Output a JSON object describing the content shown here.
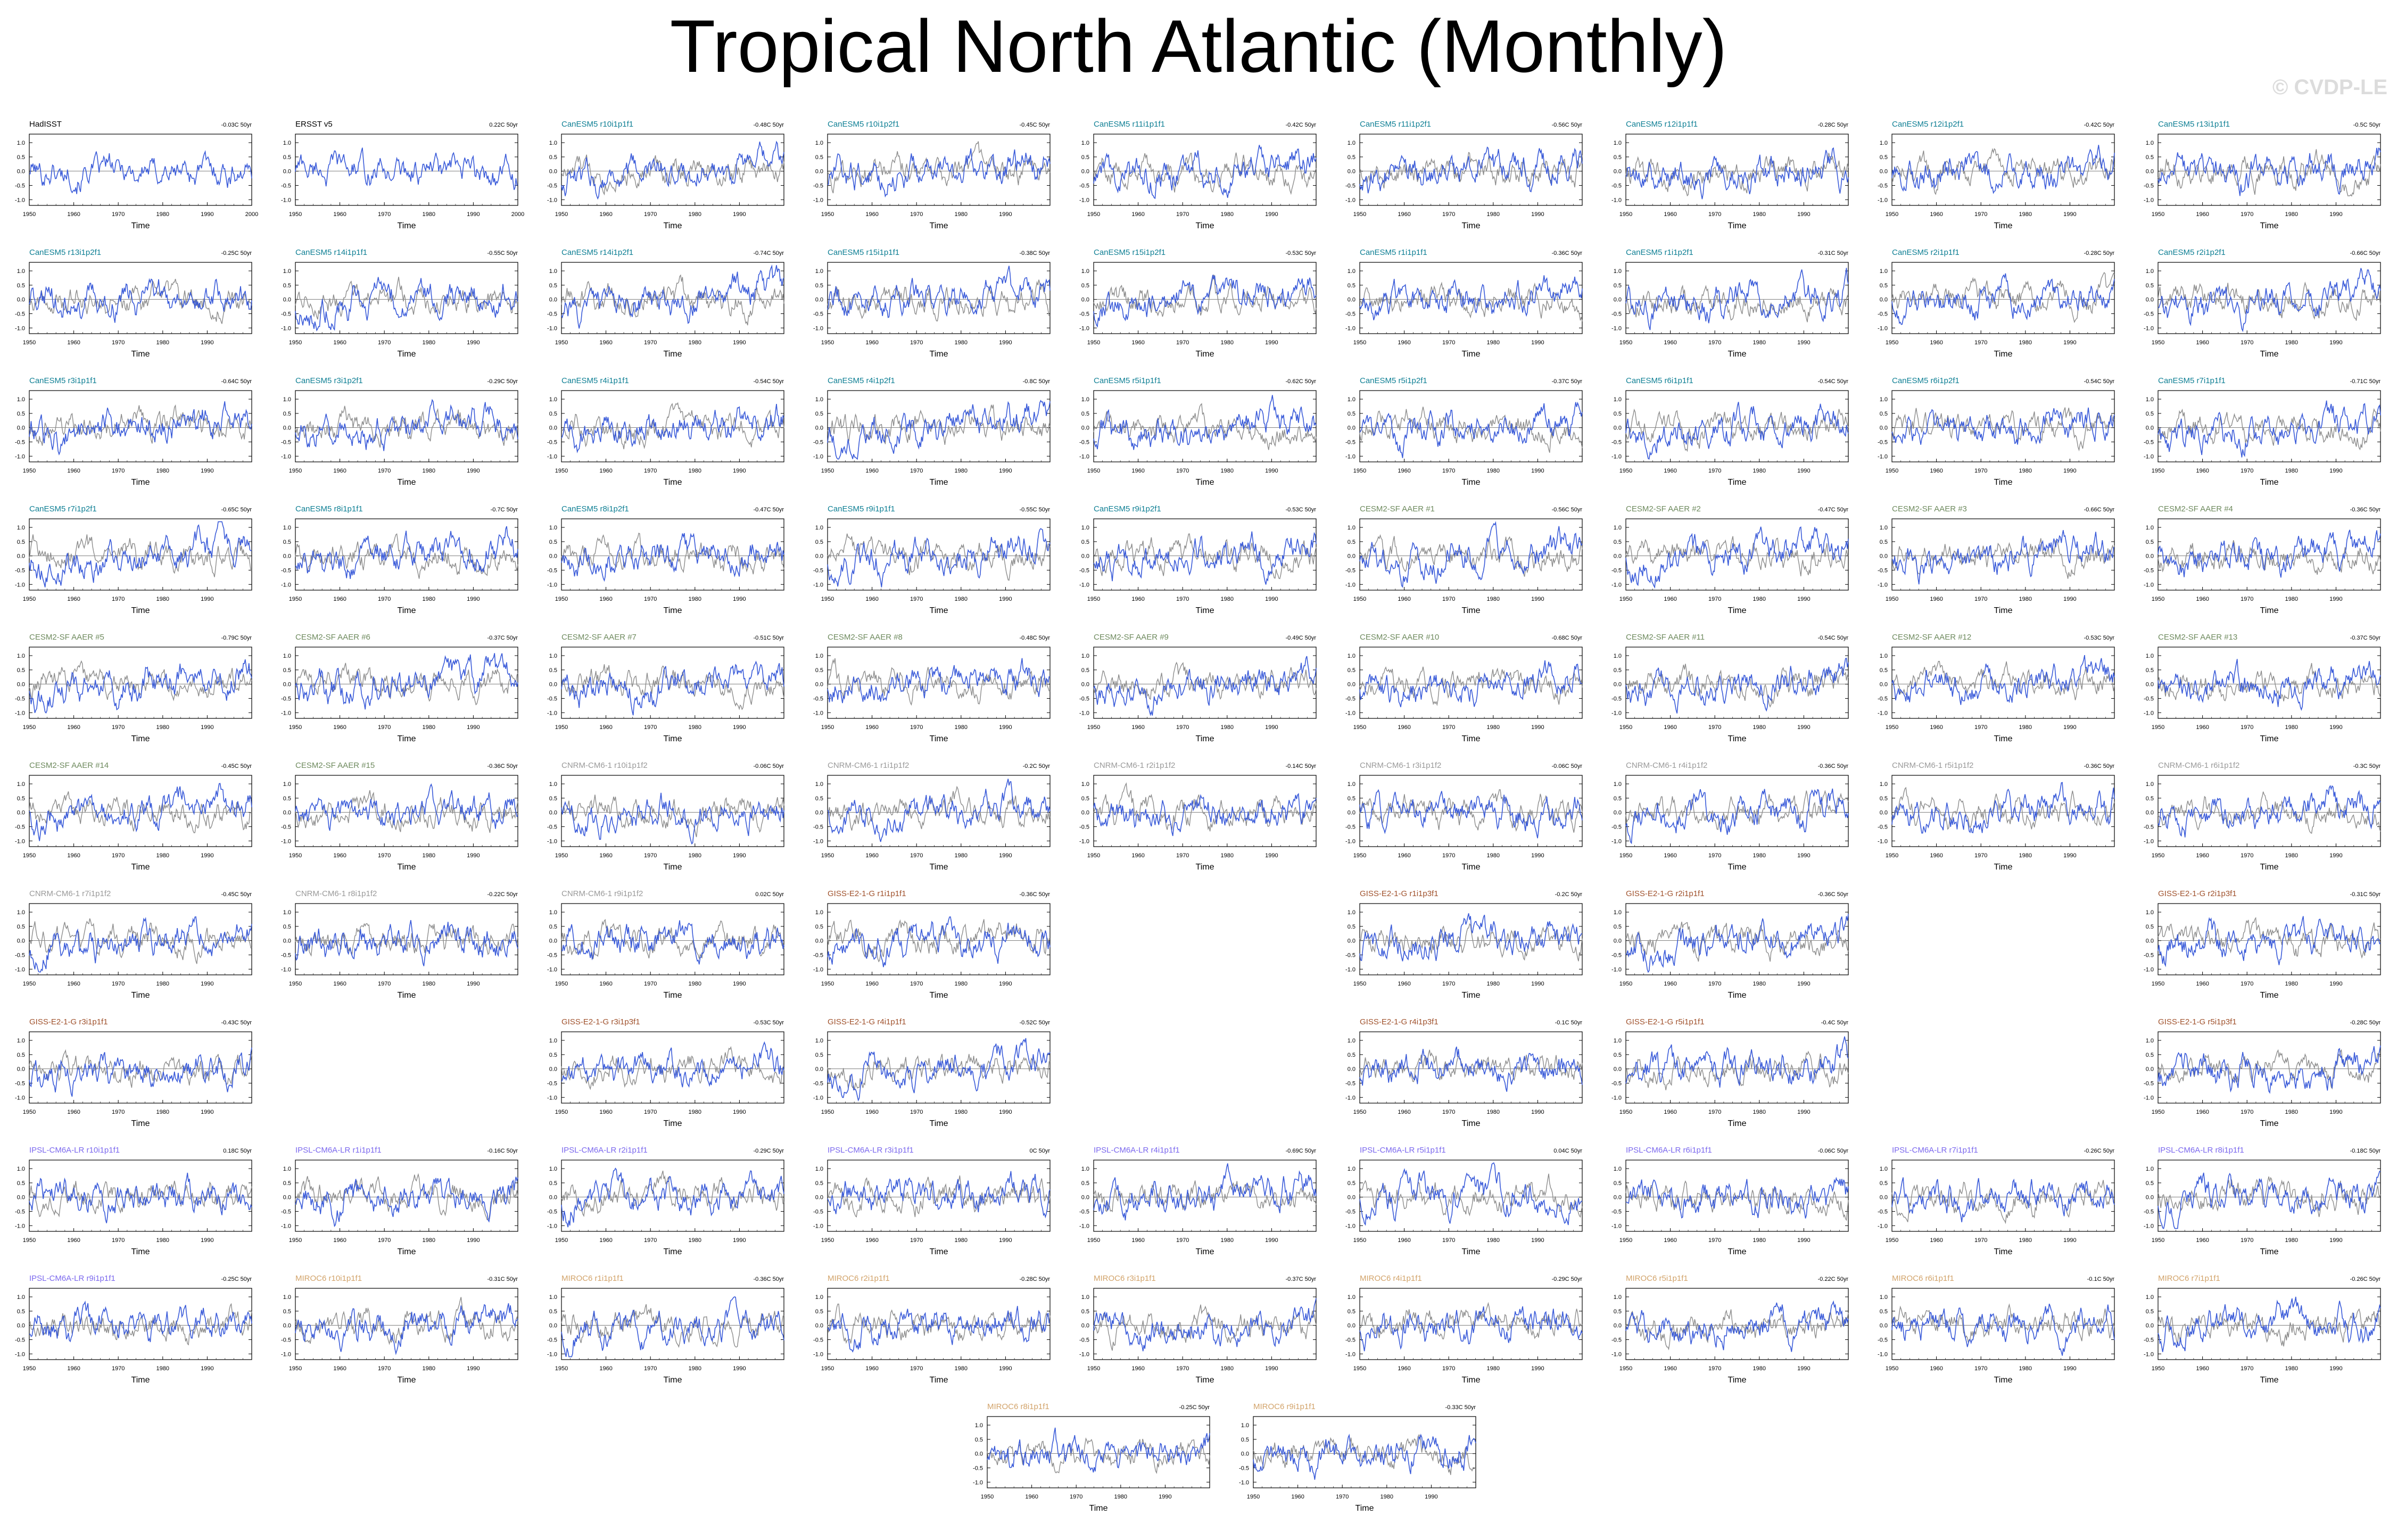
{
  "page": {
    "title": "Tropical North Atlantic (Monthly)",
    "watermark": "© CVDP-LE"
  },
  "colors": {
    "model_line": "#3A5BD9",
    "observation_line": "#8C8C8C",
    "observation_title": "#000000",
    "CanESM5": "#0E7F94",
    "CESM2-SF AAER": "#6E8A5E",
    "CNRM-CM6-1": "#9A9A9A",
    "GISS-E2-1-G": "#A0522D",
    "IPSL-CM6A-LR": "#7B68EE",
    "MIROC6": "#D2A36A"
  },
  "chart_data": {
    "type": "line",
    "description_units": "x: year, y: SST anomaly (C)",
    "axes": {
      "xlabel": "Time",
      "xticks_obs": [
        1950,
        1960,
        1970,
        1980,
        1990,
        2000
      ],
      "xticks_model": [
        1950,
        1960,
        1970,
        1980,
        1990
      ],
      "xlim": [
        1950,
        2000
      ],
      "ylim": [
        -1.2,
        1.3
      ],
      "yticks_standard": [
        "1.0",
        "0.5",
        "0.0",
        "-0.5",
        "-1.0"
      ],
      "yticks_extended": [
        "1.5",
        "1.0",
        "0.5",
        "0.0",
        "-0.5",
        "-1.0"
      ]
    },
    "panels": [
      {
        "name": "HadISST",
        "trend": "-0.03C 50yr",
        "group": "obs",
        "row": 0,
        "col": 0
      },
      {
        "name": "ERSST v5",
        "trend": "0.22C 50yr",
        "group": "obs",
        "row": 0,
        "col": 1
      },
      {
        "name": "CanESM5 r10i1p1f1",
        "trend": "-0.48C 50yr",
        "group": "CanESM5",
        "row": 0,
        "col": 2
      },
      {
        "name": "CanESM5 r10i1p2f1",
        "trend": "-0.45C 50yr",
        "group": "CanESM5",
        "row": 0,
        "col": 3
      },
      {
        "name": "CanESM5 r11i1p1f1",
        "trend": "-0.42C 50yr",
        "group": "CanESM5",
        "row": 0,
        "col": 4
      },
      {
        "name": "CanESM5 r11i1p2f1",
        "trend": "-0.56C 50yr",
        "group": "CanESM5",
        "row": 0,
        "col": 5
      },
      {
        "name": "CanESM5 r12i1p1f1",
        "trend": "-0.28C 50yr",
        "group": "CanESM5",
        "row": 0,
        "col": 6
      },
      {
        "name": "CanESM5 r12i1p2f1",
        "trend": "-0.42C 50yr",
        "group": "CanESM5",
        "row": 0,
        "col": 7
      },
      {
        "name": "CanESM5 r13i1p1f1",
        "trend": "-0.5C 50yr",
        "group": "CanESM5",
        "row": 0,
        "col": 8
      },
      {
        "name": "CanESM5 r13i1p2f1",
        "trend": "-0.25C 50yr",
        "group": "CanESM5",
        "row": 1,
        "col": 0
      },
      {
        "name": "CanESM5 r14i1p1f1",
        "trend": "-0.55C 50yr",
        "group": "CanESM5",
        "row": 1,
        "col": 1
      },
      {
        "name": "CanESM5 r14i1p2f1",
        "trend": "-0.74C 50yr",
        "group": "CanESM5",
        "row": 1,
        "col": 2
      },
      {
        "name": "CanESM5 r15i1p1f1",
        "trend": "-0.38C 50yr",
        "group": "CanESM5",
        "row": 1,
        "col": 3
      },
      {
        "name": "CanESM5 r15i1p2f1",
        "trend": "-0.53C 50yr",
        "group": "CanESM5",
        "row": 1,
        "col": 4
      },
      {
        "name": "CanESM5 r1i1p1f1",
        "trend": "-0.36C 50yr",
        "group": "CanESM5",
        "row": 1,
        "col": 5
      },
      {
        "name": "CanESM5 r1i1p2f1",
        "trend": "-0.31C 50yr",
        "group": "CanESM5",
        "row": 1,
        "col": 6
      },
      {
        "name": "CanESM5 r2i1p1f1",
        "trend": "-0.28C 50yr",
        "group": "CanESM5",
        "row": 1,
        "col": 7
      },
      {
        "name": "CanESM5 r2i1p2f1",
        "trend": "-0.66C 50yr",
        "group": "CanESM5",
        "row": 1,
        "col": 8
      },
      {
        "name": "CanESM5 r3i1p1f1",
        "trend": "-0.64C 50yr",
        "group": "CanESM5",
        "row": 2,
        "col": 0
      },
      {
        "name": "CanESM5 r3i1p2f1",
        "trend": "-0.29C 50yr",
        "group": "CanESM5",
        "row": 2,
        "col": 1
      },
      {
        "name": "CanESM5 r4i1p1f1",
        "trend": "-0.54C 50yr",
        "group": "CanESM5",
        "row": 2,
        "col": 2
      },
      {
        "name": "CanESM5 r4i1p2f1",
        "trend": "-0.8C 50yr",
        "group": "CanESM5",
        "row": 2,
        "col": 3
      },
      {
        "name": "CanESM5 r5i1p1f1",
        "trend": "-0.62C 50yr",
        "group": "CanESM5",
        "row": 2,
        "col": 4
      },
      {
        "name": "CanESM5 r5i1p2f1",
        "trend": "-0.37C 50yr",
        "group": "CanESM5",
        "row": 2,
        "col": 5
      },
      {
        "name": "CanESM5 r6i1p1f1",
        "trend": "-0.54C 50yr",
        "group": "CanESM5",
        "row": 2,
        "col": 6
      },
      {
        "name": "CanESM5 r6i1p2f1",
        "trend": "-0.54C 50yr",
        "group": "CanESM5",
        "row": 2,
        "col": 7
      },
      {
        "name": "CanESM5 r7i1p1f1",
        "trend": "-0.71C 50yr",
        "group": "CanESM5",
        "row": 2,
        "col": 8
      },
      {
        "name": "CanESM5 r7i1p2f1",
        "trend": "-0.65C 50yr",
        "group": "CanESM5",
        "row": 3,
        "col": 0
      },
      {
        "name": "CanESM5 r8i1p1f1",
        "trend": "-0.7C 50yr",
        "group": "CanESM5",
        "row": 3,
        "col": 1
      },
      {
        "name": "CanESM5 r8i1p2f1",
        "trend": "-0.47C 50yr",
        "group": "CanESM5",
        "row": 3,
        "col": 2
      },
      {
        "name": "CanESM5 r9i1p1f1",
        "trend": "-0.55C 50yr",
        "group": "CanESM5",
        "row": 3,
        "col": 3
      },
      {
        "name": "CanESM5 r9i1p2f1",
        "trend": "-0.53C 50yr",
        "group": "CanESM5",
        "row": 3,
        "col": 4
      },
      {
        "name": "CESM2-SF AAER #1",
        "trend": "-0.56C 50yr",
        "group": "CESM2-SF AAER",
        "row": 3,
        "col": 5
      },
      {
        "name": "CESM2-SF AAER #2",
        "trend": "-0.47C 50yr",
        "group": "CESM2-SF AAER",
        "row": 3,
        "col": 6
      },
      {
        "name": "CESM2-SF AAER #3",
        "trend": "-0.66C 50yr",
        "group": "CESM2-SF AAER",
        "row": 3,
        "col": 7
      },
      {
        "name": "CESM2-SF AAER #4",
        "trend": "-0.36C 50yr",
        "group": "CESM2-SF AAER",
        "row": 3,
        "col": 8
      },
      {
        "name": "CESM2-SF AAER #5",
        "trend": "-0.79C 50yr",
        "group": "CESM2-SF AAER",
        "row": 4,
        "col": 0
      },
      {
        "name": "CESM2-SF AAER #6",
        "trend": "-0.37C 50yr",
        "group": "CESM2-SF AAER",
        "row": 4,
        "col": 1
      },
      {
        "name": "CESM2-SF AAER #7",
        "trend": "-0.51C 50yr",
        "group": "CESM2-SF AAER",
        "row": 4,
        "col": 2
      },
      {
        "name": "CESM2-SF AAER #8",
        "trend": "-0.48C 50yr",
        "group": "CESM2-SF AAER",
        "row": 4,
        "col": 3
      },
      {
        "name": "CESM2-SF AAER #9",
        "trend": "-0.49C 50yr",
        "group": "CESM2-SF AAER",
        "row": 4,
        "col": 4
      },
      {
        "name": "CESM2-SF AAER #10",
        "trend": "-0.68C 50yr",
        "group": "CESM2-SF AAER",
        "row": 4,
        "col": 5
      },
      {
        "name": "CESM2-SF AAER #11",
        "trend": "-0.54C 50yr",
        "group": "CESM2-SF AAER",
        "row": 4,
        "col": 6
      },
      {
        "name": "CESM2-SF AAER #12",
        "trend": "-0.53C 50yr",
        "group": "CESM2-SF AAER",
        "row": 4,
        "col": 7
      },
      {
        "name": "CESM2-SF AAER #13",
        "trend": "-0.37C 50yr",
        "group": "CESM2-SF AAER",
        "row": 4,
        "col": 8
      },
      {
        "name": "CESM2-SF AAER #14",
        "trend": "-0.45C 50yr",
        "group": "CESM2-SF AAER",
        "row": 5,
        "col": 0
      },
      {
        "name": "CESM2-SF AAER #15",
        "trend": "-0.36C 50yr",
        "group": "CESM2-SF AAER",
        "row": 5,
        "col": 1
      },
      {
        "name": "CNRM-CM6-1 r10i1p1f2",
        "trend": "-0.06C 50yr",
        "group": "CNRM-CM6-1",
        "row": 5,
        "col": 2
      },
      {
        "name": "CNRM-CM6-1 r1i1p1f2",
        "trend": "-0.2C 50yr",
        "group": "CNRM-CM6-1",
        "row": 5,
        "col": 3
      },
      {
        "name": "CNRM-CM6-1 r2i1p1f2",
        "trend": "-0.14C 50yr",
        "group": "CNRM-CM6-1",
        "row": 5,
        "col": 4
      },
      {
        "name": "CNRM-CM6-1 r3i1p1f2",
        "trend": "-0.06C 50yr",
        "group": "CNRM-CM6-1",
        "row": 5,
        "col": 5
      },
      {
        "name": "CNRM-CM6-1 r4i1p1f2",
        "trend": "-0.36C 50yr",
        "group": "CNRM-CM6-1",
        "row": 5,
        "col": 6
      },
      {
        "name": "CNRM-CM6-1 r5i1p1f2",
        "trend": "-0.36C 50yr",
        "group": "CNRM-CM6-1",
        "row": 5,
        "col": 7
      },
      {
        "name": "CNRM-CM6-1 r6i1p1f2",
        "trend": "-0.3C 50yr",
        "group": "CNRM-CM6-1",
        "row": 5,
        "col": 8
      },
      {
        "name": "CNRM-CM6-1 r7i1p1f2",
        "trend": "-0.45C 50yr",
        "group": "CNRM-CM6-1",
        "row": 6,
        "col": 0
      },
      {
        "name": "CNRM-CM6-1 r8i1p1f2",
        "trend": "-0.22C 50yr",
        "group": "CNRM-CM6-1",
        "row": 6,
        "col": 1
      },
      {
        "name": "CNRM-CM6-1 r9i1p1f2",
        "trend": "0.02C 50yr",
        "group": "CNRM-CM6-1",
        "row": 6,
        "col": 2
      },
      {
        "name": "GISS-E2-1-G r1i1p1f1",
        "trend": "-0.36C 50yr",
        "group": "GISS-E2-1-G",
        "row": 6,
        "col": 3
      },
      {
        "name": "GISS-E2-1-G r1i1p3f1",
        "trend": "-0.2C 50yr",
        "group": "GISS-E2-1-G",
        "row": 6,
        "col": 5
      },
      {
        "name": "GISS-E2-1-G r2i1p1f1",
        "trend": "-0.36C 50yr",
        "group": "GISS-E2-1-G",
        "row": 6,
        "col": 6
      },
      {
        "name": "GISS-E2-1-G r2i1p3f1",
        "trend": "-0.31C 50yr",
        "group": "GISS-E2-1-G",
        "row": 6,
        "col": 8
      },
      {
        "name": "GISS-E2-1-G r3i1p1f1",
        "trend": "-0.43C 50yr",
        "group": "GISS-E2-1-G",
        "row": 7,
        "col": 0
      },
      {
        "name": "GISS-E2-1-G r3i1p3f1",
        "trend": "-0.53C 50yr",
        "group": "GISS-E2-1-G",
        "row": 7,
        "col": 2
      },
      {
        "name": "GISS-E2-1-G r4i1p1f1",
        "trend": "-0.52C 50yr",
        "group": "GISS-E2-1-G",
        "row": 7,
        "col": 3
      },
      {
        "name": "GISS-E2-1-G r4i1p3f1",
        "trend": "-0.1C 50yr",
        "group": "GISS-E2-1-G",
        "row": 7,
        "col": 5
      },
      {
        "name": "GISS-E2-1-G r5i1p1f1",
        "trend": "-0.4C 50yr",
        "group": "GISS-E2-1-G",
        "row": 7,
        "col": 6
      },
      {
        "name": "GISS-E2-1-G r5i1p3f1",
        "trend": "-0.28C 50yr",
        "group": "GISS-E2-1-G",
        "row": 7,
        "col": 8
      },
      {
        "name": "IPSL-CM6A-LR r10i1p1f1",
        "trend": "0.18C 50yr",
        "group": "IPSL-CM6A-LR",
        "row": 8,
        "col": 0
      },
      {
        "name": "IPSL-CM6A-LR r1i1p1f1",
        "trend": "-0.16C 50yr",
        "group": "IPSL-CM6A-LR",
        "row": 8,
        "col": 1
      },
      {
        "name": "IPSL-CM6A-LR r2i1p1f1",
        "trend": "-0.29C 50yr",
        "group": "IPSL-CM6A-LR",
        "row": 8,
        "col": 2
      },
      {
        "name": "IPSL-CM6A-LR r3i1p1f1",
        "trend": "0C 50yr",
        "group": "IPSL-CM6A-LR",
        "row": 8,
        "col": 3
      },
      {
        "name": "IPSL-CM6A-LR r4i1p1f1",
        "trend": "-0.69C 50yr",
        "group": "IPSL-CM6A-LR",
        "row": 8,
        "col": 4
      },
      {
        "name": "IPSL-CM6A-LR r5i1p1f1",
        "trend": "0.04C 50yr",
        "group": "IPSL-CM6A-LR",
        "row": 8,
        "col": 5
      },
      {
        "name": "IPSL-CM6A-LR r6i1p1f1",
        "trend": "-0.06C 50yr",
        "group": "IPSL-CM6A-LR",
        "row": 8,
        "col": 6
      },
      {
        "name": "IPSL-CM6A-LR r7i1p1f1",
        "trend": "-0.26C 50yr",
        "group": "IPSL-CM6A-LR",
        "row": 8,
        "col": 7
      },
      {
        "name": "IPSL-CM6A-LR r8i1p1f1",
        "trend": "-0.18C 50yr",
        "group": "IPSL-CM6A-LR",
        "row": 8,
        "col": 8
      },
      {
        "name": "IPSL-CM6A-LR r9i1p1f1",
        "trend": "-0.25C 50yr",
        "group": "IPSL-CM6A-LR",
        "row": 9,
        "col": 0
      },
      {
        "name": "MIROC6 r10i1p1f1",
        "trend": "-0.31C 50yr",
        "group": "MIROC6",
        "row": 9,
        "col": 1
      },
      {
        "name": "MIROC6 r1i1p1f1",
        "trend": "-0.36C 50yr",
        "group": "MIROC6",
        "row": 9,
        "col": 2
      },
      {
        "name": "MIROC6 r2i1p1f1",
        "trend": "-0.28C 50yr",
        "group": "MIROC6",
        "row": 9,
        "col": 3
      },
      {
        "name": "MIROC6 r3i1p1f1",
        "trend": "-0.37C 50yr",
        "group": "MIROC6",
        "row": 9,
        "col": 4
      },
      {
        "name": "MIROC6 r4i1p1f1",
        "trend": "-0.29C 50yr",
        "group": "MIROC6",
        "row": 9,
        "col": 5
      },
      {
        "name": "MIROC6 r5i1p1f1",
        "trend": "-0.22C 50yr",
        "group": "MIROC6",
        "row": 9,
        "col": 6
      },
      {
        "name": "MIROC6 r6i1p1f1",
        "trend": "-0.1C 50yr",
        "group": "MIROC6",
        "row": 9,
        "col": 7
      },
      {
        "name": "MIROC6 r7i1p1f1",
        "trend": "-0.26C 50yr",
        "group": "MIROC6",
        "row": 9,
        "col": 8
      },
      {
        "name": "MIROC6 r8i1p1f1",
        "trend": "-0.25C 50yr",
        "group": "MIROC6",
        "row": 10,
        "col": 3.6
      },
      {
        "name": "MIROC6 r9i1p1f1",
        "trend": "-0.33C 50yr",
        "group": "MIROC6",
        "row": 10,
        "col": 4.6
      }
    ]
  }
}
